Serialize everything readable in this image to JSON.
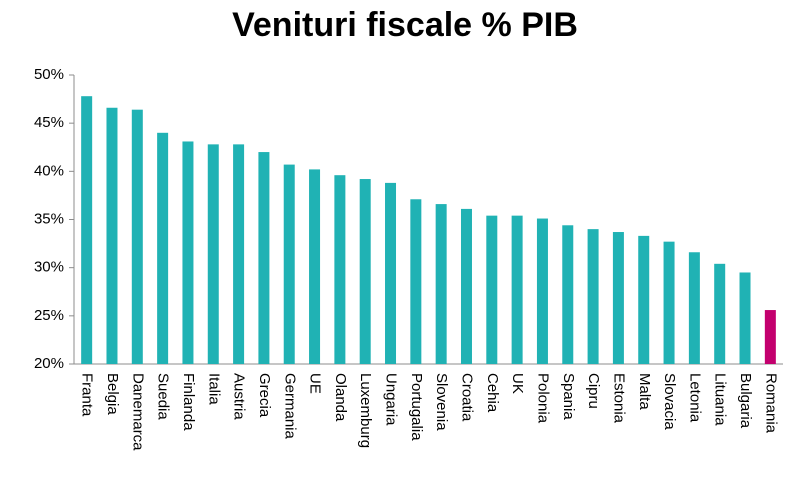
{
  "chart_data": {
    "type": "bar",
    "title": "Venituri fiscale % PIB",
    "categories": [
      "Franta",
      "Belgia",
      "Danemarca",
      "Suedia",
      "Finlanda",
      "Italia",
      "Austria",
      "Grecia",
      "Germania",
      "UE",
      "Olanda",
      "Luxemburg",
      "Ungaria",
      "Portugalia",
      "Slovenia",
      "Croatia",
      "Cehia",
      "UK",
      "Polonia",
      "Spania",
      "Cipru",
      "Estonia",
      "Malta",
      "Slovacia",
      "Letonia",
      "Lituania",
      "Bulgaria",
      "Romania"
    ],
    "values": [
      47.8,
      46.6,
      46.4,
      44.0,
      43.1,
      42.8,
      42.8,
      42.0,
      40.7,
      40.2,
      39.6,
      39.2,
      38.8,
      37.1,
      36.6,
      36.1,
      35.4,
      35.4,
      35.1,
      34.4,
      34.0,
      33.7,
      33.3,
      32.7,
      31.6,
      30.4,
      29.5,
      25.6
    ],
    "colors": [
      "#20b2b4",
      "#20b2b4",
      "#20b2b4",
      "#20b2b4",
      "#20b2b4",
      "#20b2b4",
      "#20b2b4",
      "#20b2b4",
      "#20b2b4",
      "#20b2b4",
      "#20b2b4",
      "#20b2b4",
      "#20b2b4",
      "#20b2b4",
      "#20b2b4",
      "#20b2b4",
      "#20b2b4",
      "#20b2b4",
      "#20b2b4",
      "#20b2b4",
      "#20b2b4",
      "#20b2b4",
      "#20b2b4",
      "#20b2b4",
      "#20b2b4",
      "#20b2b4",
      "#20b2b4",
      "#c3006e"
    ],
    "ylim": [
      20,
      50
    ],
    "yticks": [
      {
        "value": 20,
        "label": "20%"
      },
      {
        "value": 25,
        "label": "25%"
      },
      {
        "value": 30,
        "label": "30%"
      },
      {
        "value": 35,
        "label": "35%"
      },
      {
        "value": 40,
        "label": "40%"
      },
      {
        "value": 45,
        "label": "45%"
      },
      {
        "value": 50,
        "label": "50%"
      }
    ],
    "grid": false
  }
}
